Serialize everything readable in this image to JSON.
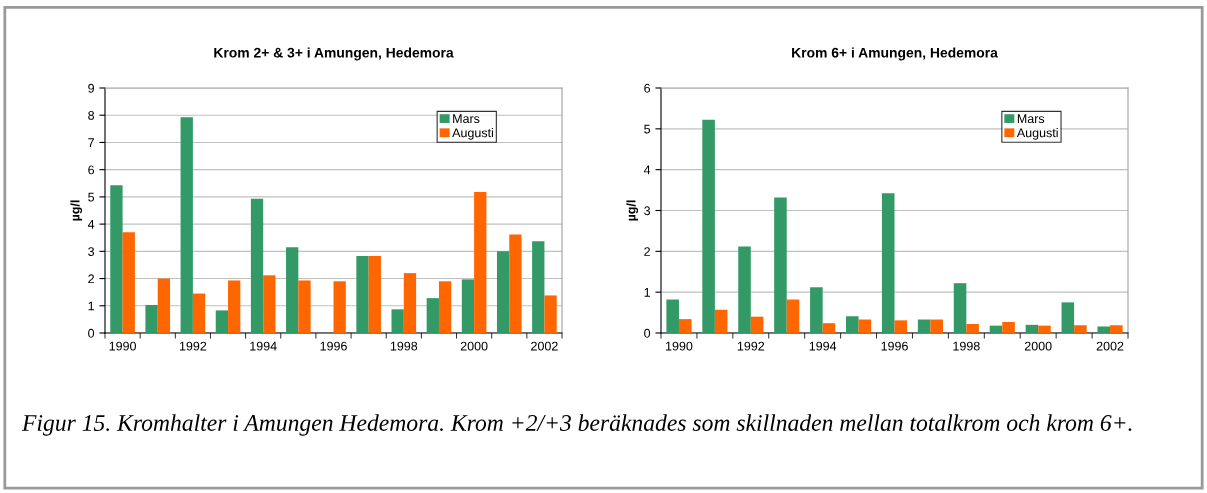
{
  "chart_data": [
    {
      "type": "bar",
      "title": "Krom 2+ & 3+ i Amungen, Hedemora",
      "ylabel": "µg/l",
      "categories": [
        "1990",
        null,
        "1992",
        null,
        "1994",
        null,
        "1996",
        null,
        "1998",
        null,
        "2000",
        null,
        "2002"
      ],
      "series": [
        {
          "name": "Mars",
          "color": "#339966",
          "values": [
            5.43,
            1.03,
            7.93,
            0.83,
            4.93,
            3.15,
            null,
            2.83,
            0.87,
            1.28,
            1.97,
            3.0,
            3.37
          ]
        },
        {
          "name": "Augusti",
          "color": "#ff6600",
          "values": [
            3.7,
            2.0,
            1.45,
            1.93,
            2.12,
            1.93,
            1.9,
            2.83,
            2.2,
            1.9,
            5.18,
            3.62,
            1.38
          ]
        }
      ],
      "ylim": [
        0,
        9
      ],
      "yticks": [
        0,
        1,
        2,
        3,
        4,
        5,
        6,
        7,
        8,
        9
      ],
      "grid": "y",
      "legend": "top right"
    },
    {
      "type": "bar",
      "title": "Krom 6+ i Amungen, Hedemora",
      "ylabel": "µg/l",
      "categories": [
        "1990",
        null,
        "1992",
        null,
        "1994",
        null,
        "1996",
        null,
        "1998",
        null,
        "2000",
        null,
        "2002"
      ],
      "series": [
        {
          "name": "Mars",
          "color": "#339966",
          "values": [
            0.82,
            5.22,
            2.12,
            3.32,
            1.12,
            0.41,
            3.42,
            0.33,
            1.22,
            0.18,
            0.2,
            0.75,
            0.16
          ]
        },
        {
          "name": "Augusti",
          "color": "#ff6600",
          "values": [
            0.34,
            0.57,
            0.4,
            0.82,
            0.24,
            0.33,
            0.31,
            0.33,
            0.22,
            0.27,
            0.18,
            0.19,
            0.19
          ]
        }
      ],
      "ylim": [
        0,
        6
      ],
      "yticks": [
        0,
        1,
        2,
        3,
        4,
        5,
        6
      ],
      "grid": "y",
      "legend": "top right",
      "annotations": [
        "Figur 15. Kromhalter i Amungen Hedemora. Krom +2/+3 beräknades som skillnaden mellan totalkrom och krom 6+."
      ]
    }
  ]
}
